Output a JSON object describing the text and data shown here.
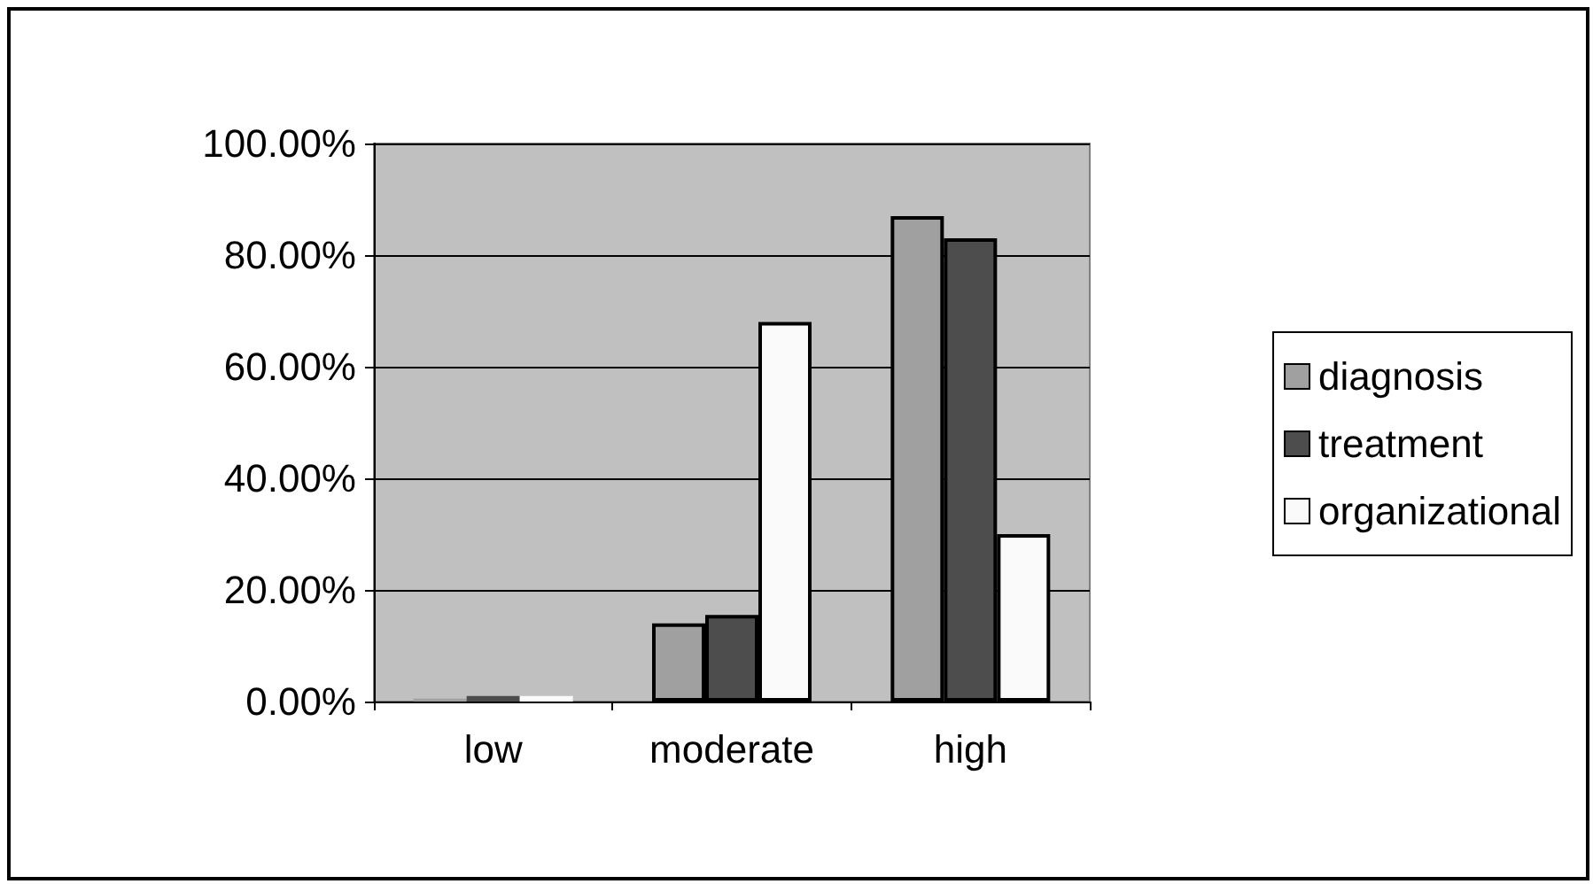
{
  "chart_data": {
    "type": "bar",
    "categories": [
      "low",
      "moderate",
      "high"
    ],
    "series": [
      {
        "name": "diagnosis",
        "color": "#a0a0a0",
        "values": [
          0.5,
          14,
          87
        ]
      },
      {
        "name": "treatment",
        "color": "#4d4d4d",
        "values": [
          1,
          15.5,
          83
        ]
      },
      {
        "name": "organizational",
        "color": "#fafafa",
        "values": [
          1,
          68,
          30
        ]
      }
    ],
    "ylim": [
      0,
      100
    ],
    "yticks": [
      {
        "value": 0,
        "label": "0.00%"
      },
      {
        "value": 20,
        "label": "20.00%"
      },
      {
        "value": 40,
        "label": "40.00%"
      },
      {
        "value": 60,
        "label": "60.00%"
      },
      {
        "value": 80,
        "label": "80.00%"
      },
      {
        "value": 100,
        "label": "100.00%"
      }
    ],
    "grid": "y",
    "legend": "right"
  }
}
